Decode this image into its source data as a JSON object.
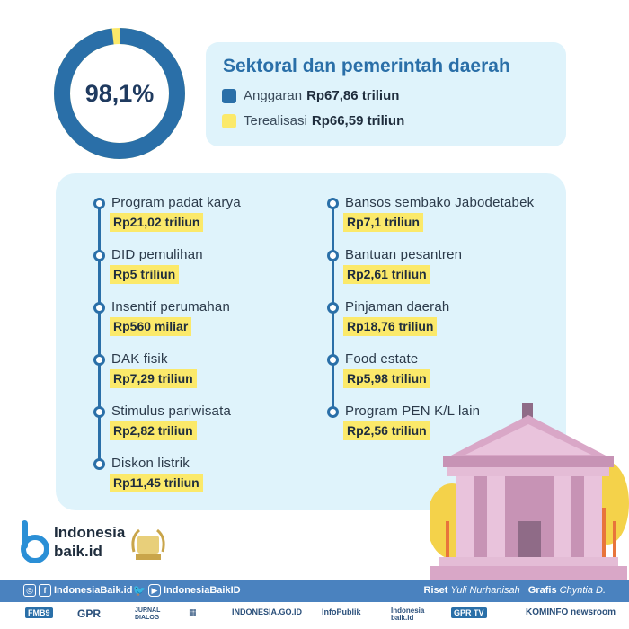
{
  "donut": {
    "percent_label": "98,1%",
    "fraction": 0.981,
    "colors": {
      "ring": "#2a6fa8",
      "remainder": "#fbe96a",
      "track": "#fbe96a"
    }
  },
  "header": {
    "title": "Sektoral dan pemerintah daerah",
    "legend": [
      {
        "label": "Anggaran",
        "value": "Rp67,86 triliun",
        "color": "#2a6fa8",
        "icon": "square"
      },
      {
        "label": "Terealisasi",
        "value": "Rp66,59 triliun",
        "color": "#fbe96a",
        "icon": "square"
      }
    ]
  },
  "items_left": [
    {
      "name": "Program padat karya",
      "value": "Rp21,02 triliun"
    },
    {
      "name": "DID pemulihan",
      "value": "Rp5 triliun"
    },
    {
      "name": "Insentif perumahan",
      "value": "Rp560 miliar"
    },
    {
      "name": "DAK fisik",
      "value": "Rp7,29 triliun"
    },
    {
      "name": "Stimulus pariwisata",
      "value": "Rp2,82 triliun"
    },
    {
      "name": "Diskon listrik",
      "value": "Rp11,45 triliun"
    }
  ],
  "items_right": [
    {
      "name": "Bansos sembako Jabodetabek",
      "value": "Rp7,1 triliun"
    },
    {
      "name": "Bantuan pesantren",
      "value": "Rp2,61 triliun"
    },
    {
      "name": "Pinjaman daerah",
      "value": "Rp18,76 triliun"
    },
    {
      "name": "Food estate",
      "value": "Rp5,98 triliun"
    },
    {
      "name": "Program PEN K/L lain",
      "value": "Rp2,56 triliun"
    }
  ],
  "logo": {
    "line1": "Indonesia",
    "line2": "baik.id",
    "award_icon": "wsis-prizes-award-icon"
  },
  "footer": {
    "social_left": "IndonesiaBaik.id",
    "social_right": "IndonesiaBaikID",
    "riset_label": "Riset",
    "riset_name": "Yuli Nurhanisah",
    "grafis_label": "Grafis",
    "grafis_name": "Chyntia D."
  },
  "partners": [
    "FMB9",
    "GPR",
    "JURNAL DIALOG",
    "INDONESIA.GO.ID",
    "InfoPublik",
    "Indonesia baik.id",
    "GPR TV",
    "KOMINFO newsroom"
  ],
  "colors": {
    "accent": "#2a6fa8",
    "highlight": "#fbe96a",
    "panel": "#dff3fb",
    "footer": "#4a82bf"
  }
}
